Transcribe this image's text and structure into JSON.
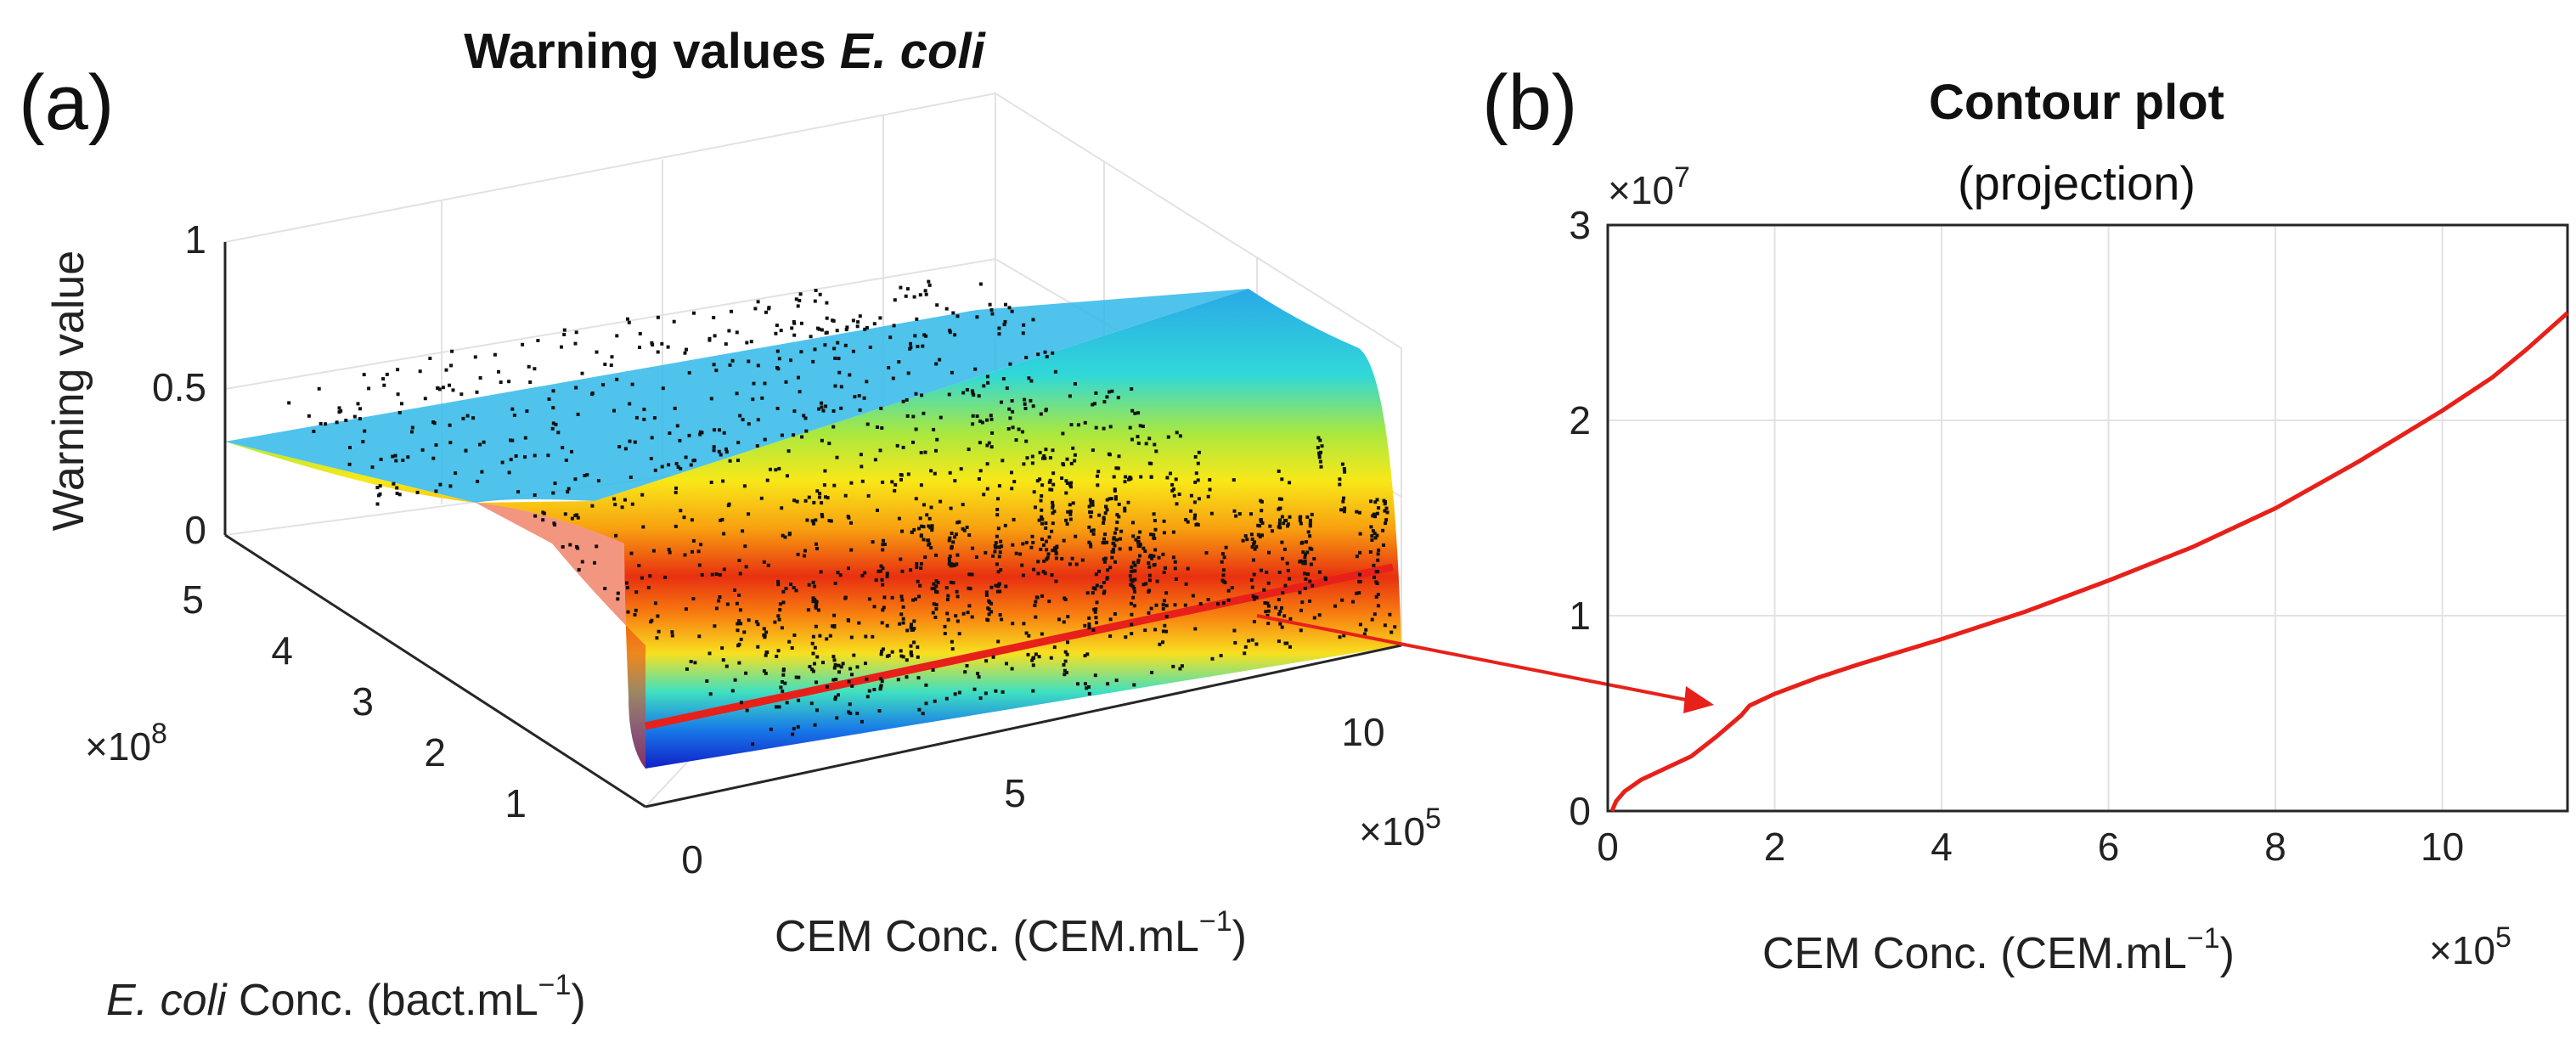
{
  "panels": {
    "a_label": "(a)",
    "b_label": "(b)"
  },
  "chart_data": [
    {
      "type": "surface3d",
      "title_prefix": "Warning values ",
      "title_italic": "E. coli",
      "x_label_text": "CEM Conc. (CEM.mL",
      "x_label_sup": "−1",
      "x_label_close": ")",
      "x_ticks": [
        "0",
        "5",
        "10"
      ],
      "x_multiplier_base": "×10",
      "x_multiplier_exp": "5",
      "y_label_italic": "E. coli",
      "y_label_text": " Conc. (bact.mL",
      "y_label_sup": "−1",
      "y_label_close": ")",
      "y_ticks": [
        "1",
        "2",
        "3",
        "4",
        "5"
      ],
      "y_multiplier_base": "×10",
      "y_multiplier_exp": "8",
      "z_label": "Warning value",
      "z_ticks": [
        "0",
        "0.5",
        "1"
      ],
      "xlim": [
        0,
        1150000
      ],
      "ylim": [
        0,
        550000000
      ],
      "zlim": [
        0,
        1
      ],
      "colormap": "jet",
      "highlight_line_color": "#e8201a"
    },
    {
      "type": "line",
      "title": "Contour plot",
      "subtitle": "(projection)",
      "xlabel_text": "CEM Conc. (CEM.mL",
      "xlabel_sup": "−1",
      "xlabel_close": ")",
      "x_multiplier_base": "×10",
      "x_multiplier_exp": "5",
      "y_multiplier_base": "×10",
      "y_multiplier_exp": "7",
      "xlim": [
        0,
        11.5
      ],
      "ylim": [
        0,
        3
      ],
      "x_ticks": [
        "0",
        "2",
        "4",
        "6",
        "8",
        "10"
      ],
      "y_ticks": [
        "0",
        "1",
        "2",
        "3"
      ],
      "grid": true,
      "line_color": "#e8201a",
      "x": [
        0.05,
        0.1,
        0.2,
        0.4,
        0.7,
        1.0,
        1.3,
        1.6,
        1.7,
        2.0,
        2.5,
        3.0,
        4.0,
        5.0,
        6.0,
        7.0,
        8.0,
        9.0,
        10.0,
        10.6,
        11.0,
        11.5
      ],
      "y": [
        0.0,
        0.05,
        0.1,
        0.16,
        0.22,
        0.28,
        0.38,
        0.49,
        0.54,
        0.6,
        0.68,
        0.75,
        0.88,
        1.02,
        1.18,
        1.35,
        1.55,
        1.79,
        2.05,
        2.22,
        2.36,
        2.55
      ]
    }
  ]
}
